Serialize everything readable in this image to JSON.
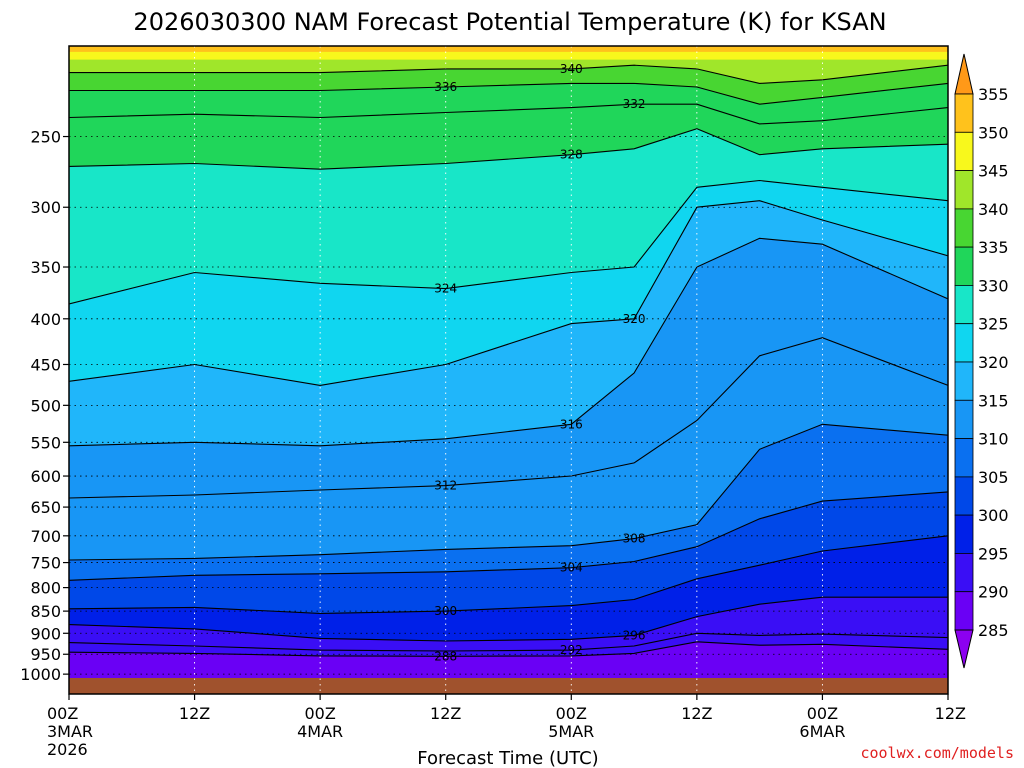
{
  "chart_data": {
    "type": "heatmap",
    "title": "2026030300 NAM Forecast Potential Temperature (K) for KSAN",
    "xlabel": "Forecast Time (UTC)",
    "credit": "coolwx.com/models",
    "x_ticks": [
      {
        "hour": 0,
        "line1": "00Z",
        "line2": "3MAR",
        "line3": "2026"
      },
      {
        "hour": 12,
        "line1": "12Z",
        "line2": "",
        "line3": ""
      },
      {
        "hour": 24,
        "line1": "00Z",
        "line2": "4MAR",
        "line3": ""
      },
      {
        "hour": 36,
        "line1": "12Z",
        "line2": "",
        "line3": ""
      },
      {
        "hour": 48,
        "line1": "00Z",
        "line2": "5MAR",
        "line3": ""
      },
      {
        "hour": 60,
        "line1": "12Z",
        "line2": "",
        "line3": ""
      },
      {
        "hour": 72,
        "line1": "00Z",
        "line2": "6MAR",
        "line3": ""
      },
      {
        "hour": 84,
        "line1": "12Z",
        "line2": "",
        "line3": ""
      }
    ],
    "xlim": [
      0,
      84
    ],
    "y_ticks": [
      250,
      300,
      350,
      400,
      450,
      500,
      550,
      600,
      650,
      700,
      750,
      800,
      850,
      900,
      950,
      1000
    ],
    "ylim": [
      1010,
      200
    ],
    "colorbar": {
      "levels": [
        285,
        290,
        295,
        300,
        305,
        310,
        315,
        320,
        325,
        330,
        335,
        340,
        345,
        350,
        355
      ],
      "colors": [
        "#8c00f0",
        "#6a00f5",
        "#3a0ef5",
        "#0020e8",
        "#0048e8",
        "#0a70f0",
        "#1896f5",
        "#20b6fa",
        "#10d6f0",
        "#18e6c8",
        "#20d65a",
        "#48d632",
        "#a0e62a",
        "#f8f81c",
        "#ffc21c",
        "#ff9918"
      ],
      "units": "K"
    },
    "contours": [
      {
        "level": 288,
        "label": "288",
        "points": [
          [
            0,
            945
          ],
          [
            12,
            948
          ],
          [
            24,
            954
          ],
          [
            36,
            955
          ],
          [
            48,
            954
          ],
          [
            54,
            948
          ],
          [
            60,
            920
          ],
          [
            66,
            928
          ],
          [
            72,
            926
          ],
          [
            84,
            938
          ]
        ]
      },
      {
        "level": 292,
        "label": "292",
        "points": [
          [
            0,
            922
          ],
          [
            12,
            930
          ],
          [
            24,
            940
          ],
          [
            36,
            942
          ],
          [
            48,
            940
          ],
          [
            54,
            930
          ],
          [
            60,
            900
          ],
          [
            66,
            905
          ],
          [
            72,
            902
          ],
          [
            84,
            910
          ]
        ]
      },
      {
        "level": 296,
        "label": "296",
        "points": [
          [
            0,
            880
          ],
          [
            12,
            890
          ],
          [
            24,
            912
          ],
          [
            36,
            918
          ],
          [
            48,
            914
          ],
          [
            54,
            905
          ],
          [
            60,
            862
          ],
          [
            66,
            835
          ],
          [
            72,
            820
          ],
          [
            84,
            820
          ]
        ]
      },
      {
        "level": 300,
        "label": "300",
        "points": [
          [
            0,
            845
          ],
          [
            12,
            842
          ],
          [
            24,
            855
          ],
          [
            36,
            850
          ],
          [
            48,
            838
          ],
          [
            54,
            825
          ],
          [
            60,
            782
          ],
          [
            66,
            755
          ],
          [
            72,
            728
          ],
          [
            84,
            700
          ]
        ]
      },
      {
        "level": 304,
        "label": "304",
        "points": [
          [
            0,
            785
          ],
          [
            12,
            775
          ],
          [
            24,
            772
          ],
          [
            36,
            768
          ],
          [
            48,
            760
          ],
          [
            54,
            748
          ],
          [
            60,
            720
          ],
          [
            66,
            670
          ],
          [
            72,
            640
          ],
          [
            84,
            625
          ]
        ]
      },
      {
        "level": 308,
        "label": "308",
        "points": [
          [
            0,
            745
          ],
          [
            12,
            742
          ],
          [
            24,
            735
          ],
          [
            36,
            725
          ],
          [
            48,
            718
          ],
          [
            54,
            705
          ],
          [
            60,
            680
          ],
          [
            66,
            560
          ],
          [
            72,
            525
          ],
          [
            84,
            540
          ]
        ]
      },
      {
        "level": 312,
        "label": "312",
        "points": [
          [
            0,
            635
          ],
          [
            12,
            630
          ],
          [
            24,
            622
          ],
          [
            36,
            615
          ],
          [
            48,
            600
          ],
          [
            54,
            580
          ],
          [
            60,
            520
          ],
          [
            66,
            440
          ],
          [
            72,
            420
          ],
          [
            84,
            475
          ]
        ]
      },
      {
        "level": 316,
        "label": "316",
        "points": [
          [
            0,
            555
          ],
          [
            12,
            550
          ],
          [
            24,
            555
          ],
          [
            36,
            545
          ],
          [
            48,
            525
          ],
          [
            54,
            460
          ],
          [
            60,
            350
          ],
          [
            66,
            325
          ],
          [
            72,
            330
          ],
          [
            84,
            380
          ]
        ]
      },
      {
        "level": 320,
        "label": "320",
        "points": [
          [
            0,
            470
          ],
          [
            12,
            450
          ],
          [
            24,
            475
          ],
          [
            36,
            450
          ],
          [
            48,
            405
          ],
          [
            54,
            400
          ],
          [
            60,
            300
          ],
          [
            66,
            295
          ],
          [
            72,
            310
          ],
          [
            84,
            340
          ]
        ]
      },
      {
        "level": 324,
        "label": "324",
        "points": [
          [
            0,
            385
          ],
          [
            12,
            355
          ],
          [
            24,
            365
          ],
          [
            36,
            370
          ],
          [
            48,
            355
          ],
          [
            54,
            350
          ],
          [
            60,
            285
          ],
          [
            66,
            280
          ],
          [
            72,
            285
          ],
          [
            84,
            295
          ]
        ]
      },
      {
        "level": 328,
        "label": "328",
        "points": [
          [
            0,
            270
          ],
          [
            12,
            268
          ],
          [
            24,
            272
          ],
          [
            36,
            268
          ],
          [
            48,
            262
          ],
          [
            54,
            258
          ],
          [
            60,
            245
          ],
          [
            66,
            262
          ],
          [
            72,
            258
          ],
          [
            84,
            255
          ]
        ]
      },
      {
        "level": 332,
        "label": "332",
        "points": [
          [
            0,
            238
          ],
          [
            12,
            236
          ],
          [
            24,
            238
          ],
          [
            36,
            235
          ],
          [
            48,
            232
          ],
          [
            54,
            230
          ],
          [
            60,
            230
          ],
          [
            66,
            242
          ],
          [
            72,
            240
          ],
          [
            84,
            232
          ]
        ]
      },
      {
        "level": 336,
        "label": "336",
        "points": [
          [
            0,
            222
          ],
          [
            12,
            222
          ],
          [
            24,
            222
          ],
          [
            36,
            220
          ],
          [
            48,
            218
          ],
          [
            54,
            218
          ],
          [
            60,
            220
          ],
          [
            66,
            230
          ],
          [
            72,
            226
          ],
          [
            84,
            218
          ]
        ]
      },
      {
        "level": 340,
        "label": "340",
        "points": [
          [
            0,
            212
          ],
          [
            12,
            212
          ],
          [
            24,
            212
          ],
          [
            36,
            210
          ],
          [
            48,
            210
          ],
          [
            54,
            208
          ],
          [
            60,
            210
          ],
          [
            66,
            218
          ],
          [
            72,
            216
          ],
          [
            84,
            208
          ]
        ]
      }
    ]
  }
}
